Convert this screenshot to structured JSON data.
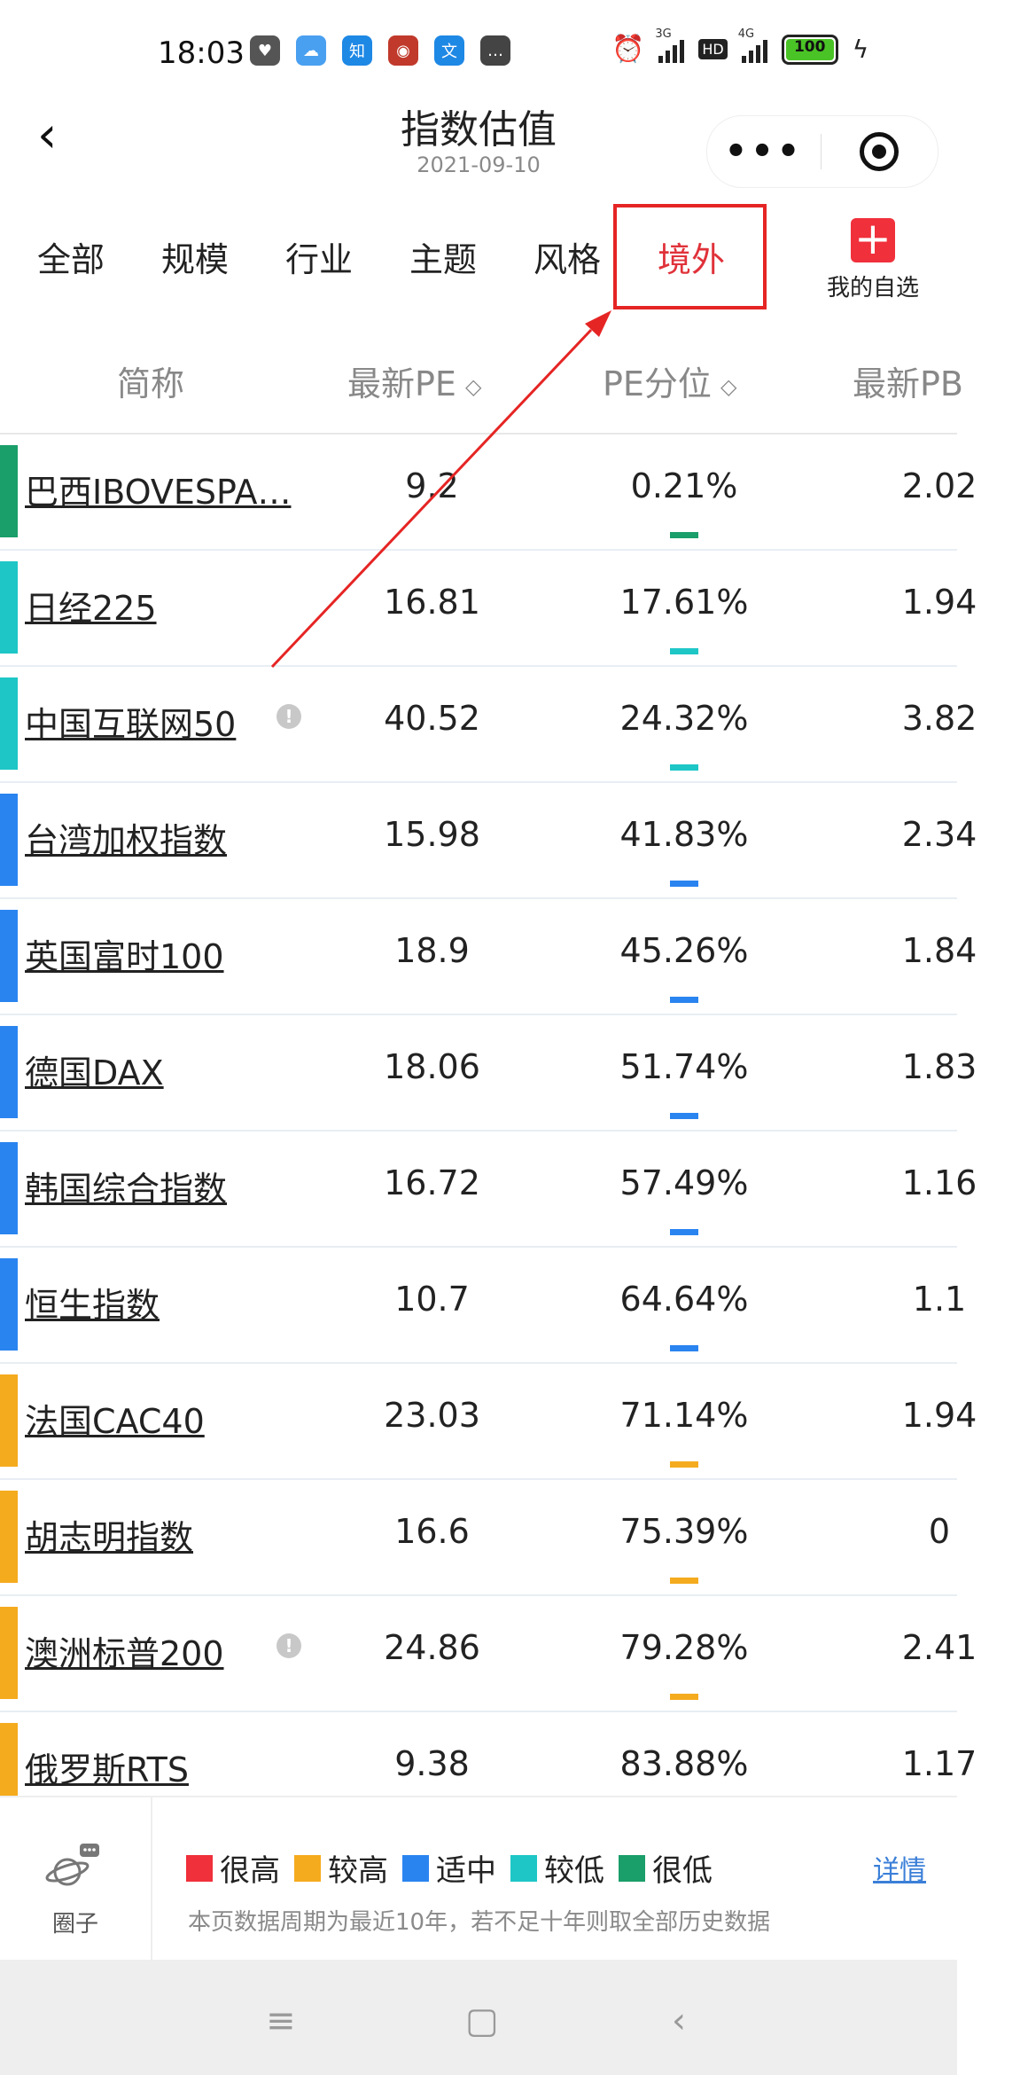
{
  "status_bar": {
    "time": "18:03",
    "apps": [
      {
        "name": "heart-app-icon",
        "glyph": "♥",
        "color": "#555555"
      },
      {
        "name": "cloud-app-icon",
        "glyph": "☁",
        "color": "#4aa0f0"
      },
      {
        "name": "zhihu-app-icon",
        "glyph": "知",
        "color": "#1e88e5"
      },
      {
        "name": "seal-app-icon",
        "glyph": "◉",
        "color": "#c0392b"
      },
      {
        "name": "text-app-icon",
        "glyph": "文",
        "color": "#1e88e5"
      },
      {
        "name": "message-app-icon",
        "glyph": "…",
        "color": "#444444"
      }
    ],
    "signal1_label": "3G",
    "signal2_label": "4G",
    "hd_label": "HD",
    "battery": "100"
  },
  "header": {
    "title": "指数估值",
    "date": "2021-09-10"
  },
  "tabs": [
    {
      "label": "全部",
      "active": false
    },
    {
      "label": "规模",
      "active": false
    },
    {
      "label": "行业",
      "active": false
    },
    {
      "label": "主题",
      "active": false
    },
    {
      "label": "风格",
      "active": false
    },
    {
      "label": "境外",
      "active": true
    }
  ],
  "my_favorites": {
    "label": "我的自选"
  },
  "table": {
    "columns": [
      "简称",
      "最新PE",
      "PE分位",
      "最新PB"
    ],
    "rows": [
      {
        "name": "巴西IBOVESPA…",
        "pe": "9.2",
        "pct": "0.21%",
        "pb": "2.02",
        "color": "#1a9e6a",
        "info": false
      },
      {
        "name": "日经225",
        "pe": "16.81",
        "pct": "17.61%",
        "pb": "1.94",
        "color": "#1ec6c6",
        "info": false
      },
      {
        "name": "中国互联网50",
        "pe": "40.52",
        "pct": "24.32%",
        "pb": "3.82",
        "color": "#1ec6c6",
        "info": true
      },
      {
        "name": "台湾加权指数",
        "pe": "15.98",
        "pct": "41.83%",
        "pb": "2.34",
        "color": "#2a84f0",
        "info": false
      },
      {
        "name": "英国富时100",
        "pe": "18.9",
        "pct": "45.26%",
        "pb": "1.84",
        "color": "#2a84f0",
        "info": false
      },
      {
        "name": "德国DAX",
        "pe": "18.06",
        "pct": "51.74%",
        "pb": "1.83",
        "color": "#2a84f0",
        "info": false
      },
      {
        "name": "韩国综合指数",
        "pe": "16.72",
        "pct": "57.49%",
        "pb": "1.16",
        "color": "#2a84f0",
        "info": false
      },
      {
        "name": "恒生指数",
        "pe": "10.7",
        "pct": "64.64%",
        "pb": "1.1",
        "color": "#2a84f0",
        "info": false
      },
      {
        "name": "法国CAC40",
        "pe": "23.03",
        "pct": "71.14%",
        "pb": "1.94",
        "color": "#f5ab1e",
        "info": false
      },
      {
        "name": "胡志明指数",
        "pe": "16.6",
        "pct": "75.39%",
        "pb": "0",
        "color": "#f5ab1e",
        "info": false
      },
      {
        "name": "澳洲标普200",
        "pe": "24.86",
        "pct": "79.28%",
        "pb": "2.41",
        "color": "#f5ab1e",
        "info": true
      },
      {
        "name": "俄罗斯RTS",
        "pe": "9.38",
        "pct": "83.88%",
        "pb": "1.17",
        "color": "#f5ab1e",
        "info": false
      }
    ]
  },
  "footer": {
    "circle_label": "圈子",
    "legend": [
      {
        "label": "很高",
        "color": "#f0303b"
      },
      {
        "label": "较高",
        "color": "#f5ab1e"
      },
      {
        "label": "适中",
        "color": "#2a84f0"
      },
      {
        "label": "较低",
        "color": "#1ec6c6"
      },
      {
        "label": "很低",
        "color": "#1a9e6a"
      }
    ],
    "detail_link": "详情",
    "note": "本页数据周期为最近10年，若不足十年则取全部历史数据"
  },
  "nav": {
    "menu_glyph": "≡",
    "home_glyph": "▢",
    "back_glyph": "‹"
  }
}
